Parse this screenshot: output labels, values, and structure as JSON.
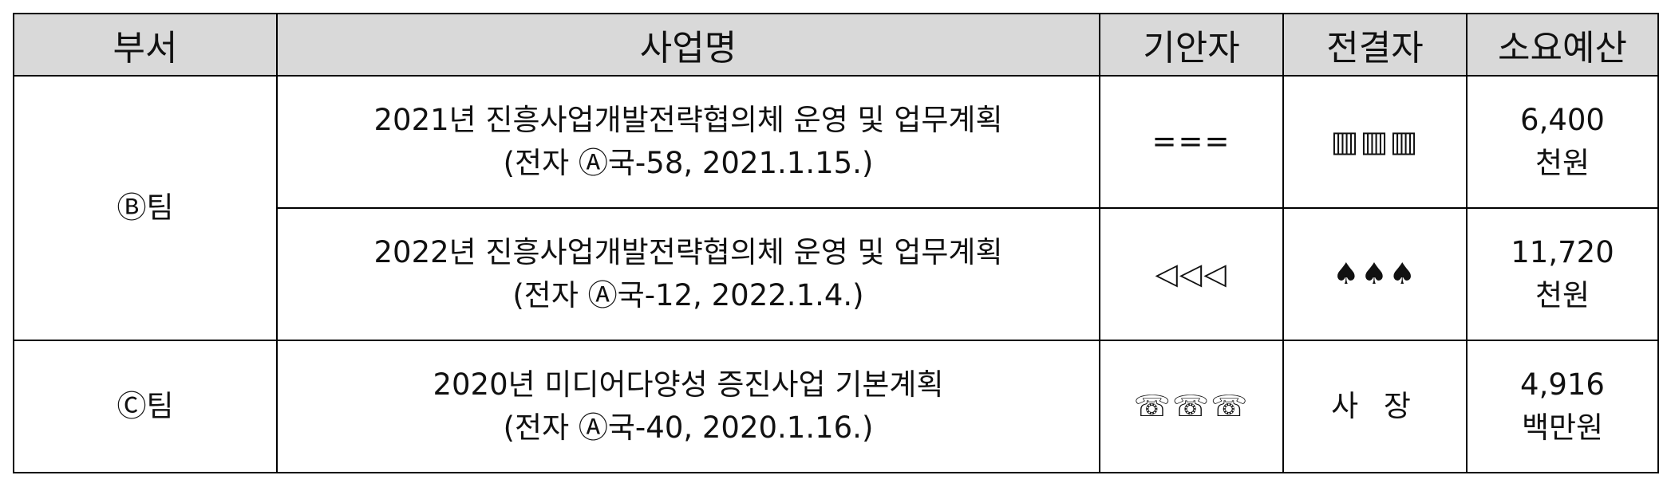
{
  "headers": {
    "dept": "부서",
    "project": "사업명",
    "drafter": "기안자",
    "approver": "전결자",
    "budget": "소요예산"
  },
  "rows": [
    {
      "dept": "Ⓑ팀",
      "project_line1": "2021년 진흥사업개발전략협의체 운영 및 업무계획",
      "project_line2": "(전자 Ⓐ국-58, 2021.1.15.)",
      "drafter": "===",
      "approver": "▥▥▥",
      "budget_line1": "6,400",
      "budget_line2": "천원"
    },
    {
      "project_line1": "2022년 진흥사업개발전략협의체 운영 및 업무계획",
      "project_line2": "(전자 Ⓐ국-12, 2022.1.4.)",
      "drafter": "◁◁◁",
      "approver": "♠♠♠",
      "budget_line1": "11,720",
      "budget_line2": "천원"
    },
    {
      "dept": "Ⓒ팀",
      "project_line1": "2020년 미디어다양성 증진사업 기본계획",
      "project_line2": "(전자 Ⓐ국-40, 2020.1.16.)",
      "drafter": "☏☏☏",
      "approver": "사 장",
      "budget_line1": "4,916",
      "budget_line2": "백만원"
    }
  ]
}
